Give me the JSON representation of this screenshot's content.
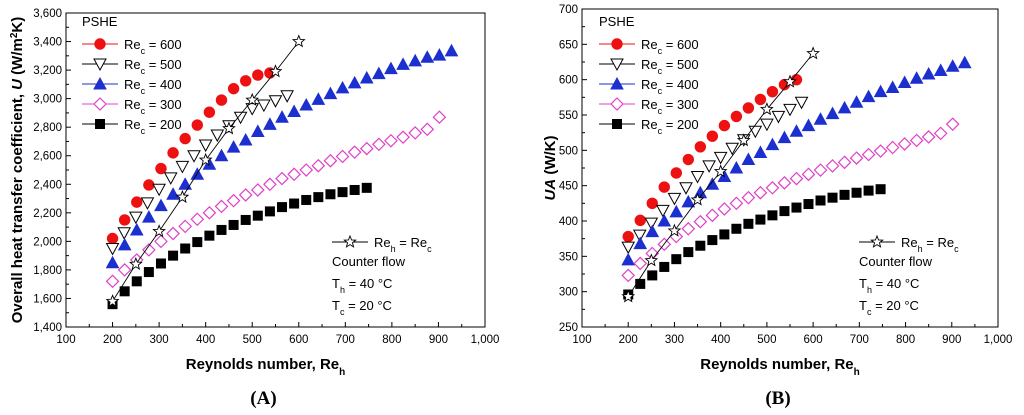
{
  "chart_data": [
    {
      "type": "scatter",
      "panel_label": "(A)",
      "title": "",
      "xlabel": {
        "text": "Reynolds number, Re",
        "sub": "h"
      },
      "ylabel": {
        "pre": "Overall heat transfer coefficient, ",
        "italic": "U",
        "mid": " (W/m",
        "sup": "2",
        "post": "K)"
      },
      "xlim": [
        100,
        1000
      ],
      "ylim": [
        1400,
        3600
      ],
      "xticks": [
        100,
        200,
        300,
        400,
        500,
        600,
        700,
        800,
        900,
        1000
      ],
      "xtick_labels": [
        "100",
        "200",
        "300",
        "400",
        "500",
        "600",
        "700",
        "800",
        "900",
        "1,000"
      ],
      "yticks": [
        1400,
        1600,
        1800,
        2000,
        2200,
        2400,
        2600,
        2800,
        3000,
        3200,
        3400,
        3600
      ],
      "ytick_labels": [
        "1,400",
        "1,600",
        "1,800",
        "2,000",
        "2,200",
        "2,400",
        "2,600",
        "2,800",
        "3,000",
        "3,200",
        "3,400",
        "3,600"
      ],
      "legend_title": "PSHE",
      "legend_position": "top-left",
      "series": [
        {
          "name": "Re_c = 600",
          "label_main": "Re",
          "label_sub": "c",
          "label_rest": " = 600",
          "marker": "circle",
          "color": "#ee1111",
          "filled": true,
          "x": [
            200,
            226,
            252,
            278,
            304,
            330,
            356,
            382,
            408,
            434,
            460,
            486,
            512,
            538
          ],
          "y": [
            2020,
            2150,
            2275,
            2395,
            2510,
            2620,
            2720,
            2815,
            2905,
            2990,
            3070,
            3125,
            3165,
            3180
          ]
        },
        {
          "name": "Re_c = 500",
          "label_main": "Re",
          "label_sub": "c",
          "label_rest": " = 500",
          "marker": "triangle-down",
          "color": "#000000",
          "filled": false,
          "x": [
            200,
            225,
            250,
            275,
            300,
            325,
            350,
            375,
            400,
            425,
            450,
            475,
            500,
            525,
            550,
            575
          ],
          "y": [
            1950,
            2060,
            2170,
            2270,
            2365,
            2445,
            2525,
            2600,
            2675,
            2745,
            2810,
            2870,
            2930,
            2955,
            2985,
            3020
          ]
        },
        {
          "name": "Re_c = 400",
          "label_main": "Re",
          "label_sub": "c",
          "label_rest": " = 400",
          "marker": "triangle-up",
          "color": "#1c2fcf",
          "filled": true,
          "x": [
            200,
            226,
            252,
            278,
            304,
            330,
            356,
            382,
            408,
            434,
            460,
            486,
            512,
            538,
            564,
            590,
            616,
            642,
            668,
            694,
            720,
            746,
            772,
            798,
            824,
            850,
            876,
            902,
            928
          ],
          "y": [
            1850,
            1975,
            2080,
            2170,
            2250,
            2330,
            2400,
            2470,
            2540,
            2600,
            2660,
            2710,
            2770,
            2820,
            2870,
            2910,
            2955,
            2995,
            3035,
            3075,
            3110,
            3145,
            3175,
            3210,
            3240,
            3265,
            3290,
            3305,
            3335
          ]
        },
        {
          "name": "Re_c = 300",
          "label_main": "Re",
          "label_sub": "c",
          "label_rest": " = 300",
          "marker": "diamond",
          "color": "#e040c8",
          "filled": false,
          "x": [
            200,
            226,
            252,
            278,
            304,
            330,
            356,
            382,
            408,
            434,
            460,
            486,
            512,
            538,
            564,
            590,
            616,
            642,
            668,
            694,
            720,
            746,
            772,
            798,
            824,
            850,
            876,
            902
          ],
          "y": [
            1720,
            1800,
            1870,
            1940,
            2000,
            2055,
            2105,
            2155,
            2200,
            2245,
            2285,
            2325,
            2360,
            2400,
            2440,
            2470,
            2500,
            2530,
            2565,
            2595,
            2625,
            2650,
            2680,
            2705,
            2730,
            2760,
            2785,
            2870
          ]
        },
        {
          "name": "Re_c = 200",
          "label_main": "Re",
          "label_sub": "c",
          "label_rest": " = 200",
          "marker": "square",
          "color": "#000000",
          "filled": true,
          "x": [
            200,
            226,
            252,
            278,
            304,
            330,
            356,
            382,
            408,
            434,
            460,
            486,
            512,
            538,
            564,
            590,
            616,
            642,
            668,
            694,
            720,
            746
          ],
          "y": [
            1560,
            1650,
            1720,
            1785,
            1845,
            1900,
            1950,
            1995,
            2040,
            2080,
            2115,
            2150,
            2180,
            2210,
            2240,
            2265,
            2290,
            2310,
            2330,
            2345,
            2360,
            2375
          ]
        },
        {
          "name": "Re_h = Re_c",
          "label_main": "Re",
          "label_sub": "h",
          "label_rest": " = Re",
          "label_sub2": "c",
          "marker": "star-line",
          "color": "#000000",
          "filled": false,
          "x": [
            200,
            250,
            300,
            350,
            400,
            450,
            500,
            550,
            600
          ],
          "y": [
            1580,
            1840,
            2070,
            2310,
            2570,
            2790,
            2990,
            3190,
            3400
          ]
        }
      ],
      "annotations": [
        {
          "text": "Counter flow"
        },
        {
          "main": "T",
          "sub": "h",
          "rest": " = 40 °C"
        },
        {
          "main": "T",
          "sub": "c",
          "rest": " = 20 °C"
        }
      ]
    },
    {
      "type": "scatter",
      "panel_label": "(B)",
      "title": "",
      "xlabel": {
        "text": "Reynolds number, Re",
        "sub": "h"
      },
      "ylabel": {
        "pre": "",
        "italic": "UA",
        "mid": " (W/K)",
        "sup": "",
        "post": ""
      },
      "xlim": [
        100,
        1000
      ],
      "ylim": [
        250,
        700
      ],
      "xticks": [
        100,
        200,
        300,
        400,
        500,
        600,
        700,
        800,
        900,
        1000
      ],
      "xtick_labels": [
        "100",
        "200",
        "300",
        "400",
        "500",
        "600",
        "700",
        "800",
        "900",
        "1,000"
      ],
      "yticks": [
        250,
        300,
        350,
        400,
        450,
        500,
        550,
        600,
        650,
        700
      ],
      "ytick_labels": [
        "250",
        "300",
        "350",
        "400",
        "450",
        "500",
        "550",
        "600",
        "650",
        "700"
      ],
      "legend_title": "PSHE",
      "legend_position": "top-left",
      "series": [
        {
          "name": "Re_c = 600",
          "label_main": "Re",
          "label_sub": "c",
          "label_rest": " = 600",
          "marker": "circle",
          "color": "#ee1111",
          "filled": true,
          "x": [
            200,
            226,
            252,
            278,
            304,
            330,
            356,
            382,
            408,
            434,
            460,
            486,
            512,
            538,
            564
          ],
          "y": [
            378,
            401,
            425,
            448,
            468,
            487,
            505,
            520,
            535,
            548,
            560,
            572,
            583,
            593,
            600
          ]
        },
        {
          "name": "Re_c = 500",
          "label_main": "Re",
          "label_sub": "c",
          "label_rest": " = 500",
          "marker": "triangle-down",
          "color": "#000000",
          "filled": false,
          "x": [
            200,
            225,
            250,
            275,
            300,
            325,
            350,
            375,
            400,
            425,
            450,
            475,
            500,
            525,
            550,
            575
          ],
          "y": [
            363,
            380,
            397,
            415,
            432,
            447,
            463,
            478,
            490,
            503,
            515,
            527,
            537,
            548,
            558,
            568
          ]
        },
        {
          "name": "Re_c = 400",
          "label_main": "Re",
          "label_sub": "c",
          "label_rest": " = 400",
          "marker": "triangle-up",
          "color": "#1c2fcf",
          "filled": true,
          "x": [
            200,
            226,
            252,
            278,
            304,
            330,
            356,
            382,
            408,
            434,
            460,
            486,
            512,
            538,
            564,
            590,
            616,
            642,
            668,
            694,
            720,
            746,
            772,
            798,
            824,
            850,
            876,
            902,
            928
          ],
          "y": [
            345,
            368,
            385,
            400,
            413,
            427,
            440,
            452,
            463,
            475,
            487,
            497,
            508,
            518,
            527,
            535,
            544,
            552,
            560,
            568,
            576,
            583,
            589,
            596,
            602,
            608,
            613,
            619,
            624
          ]
        },
        {
          "name": "Re_c = 300",
          "label_main": "Re",
          "label_sub": "c",
          "label_rest": " = 300",
          "marker": "diamond",
          "color": "#e040c8",
          "filled": false,
          "x": [
            200,
            226,
            252,
            278,
            304,
            330,
            356,
            382,
            408,
            434,
            460,
            486,
            512,
            538,
            564,
            590,
            616,
            642,
            668,
            694,
            720,
            746,
            772,
            798,
            824,
            850,
            876,
            902
          ],
          "y": [
            323,
            340,
            354,
            367,
            378,
            389,
            399,
            408,
            417,
            425,
            433,
            440,
            447,
            454,
            460,
            466,
            472,
            478,
            483,
            489,
            494,
            499,
            504,
            509,
            514,
            519,
            524,
            537
          ]
        },
        {
          "name": "Re_c = 200",
          "label_main": "Re",
          "label_sub": "c",
          "label_rest": " = 200",
          "marker": "square",
          "color": "#000000",
          "filled": true,
          "x": [
            200,
            226,
            252,
            278,
            304,
            330,
            356,
            382,
            408,
            434,
            460,
            486,
            512,
            538,
            564,
            590,
            616,
            642,
            668,
            694,
            720,
            746
          ],
          "y": [
            296,
            311,
            323,
            335,
            346,
            356,
            365,
            373,
            381,
            389,
            396,
            402,
            408,
            414,
            419,
            424,
            429,
            433,
            437,
            440,
            443,
            445
          ]
        },
        {
          "name": "Re_h = Re_c",
          "label_main": "Re",
          "label_sub": "h",
          "label_rest": " = Re",
          "label_sub2": "c",
          "marker": "star-line",
          "color": "#000000",
          "filled": false,
          "x": [
            200,
            250,
            300,
            350,
            400,
            450,
            500,
            550,
            600
          ],
          "y": [
            293,
            344,
            386,
            430,
            470,
            514,
            558,
            597,
            637
          ]
        }
      ],
      "annotations": [
        {
          "text": "Counter flow"
        },
        {
          "main": "T",
          "sub": "h",
          "rest": " = 40 °C"
        },
        {
          "main": "T",
          "sub": "c",
          "rest": " = 20 °C"
        }
      ]
    }
  ]
}
